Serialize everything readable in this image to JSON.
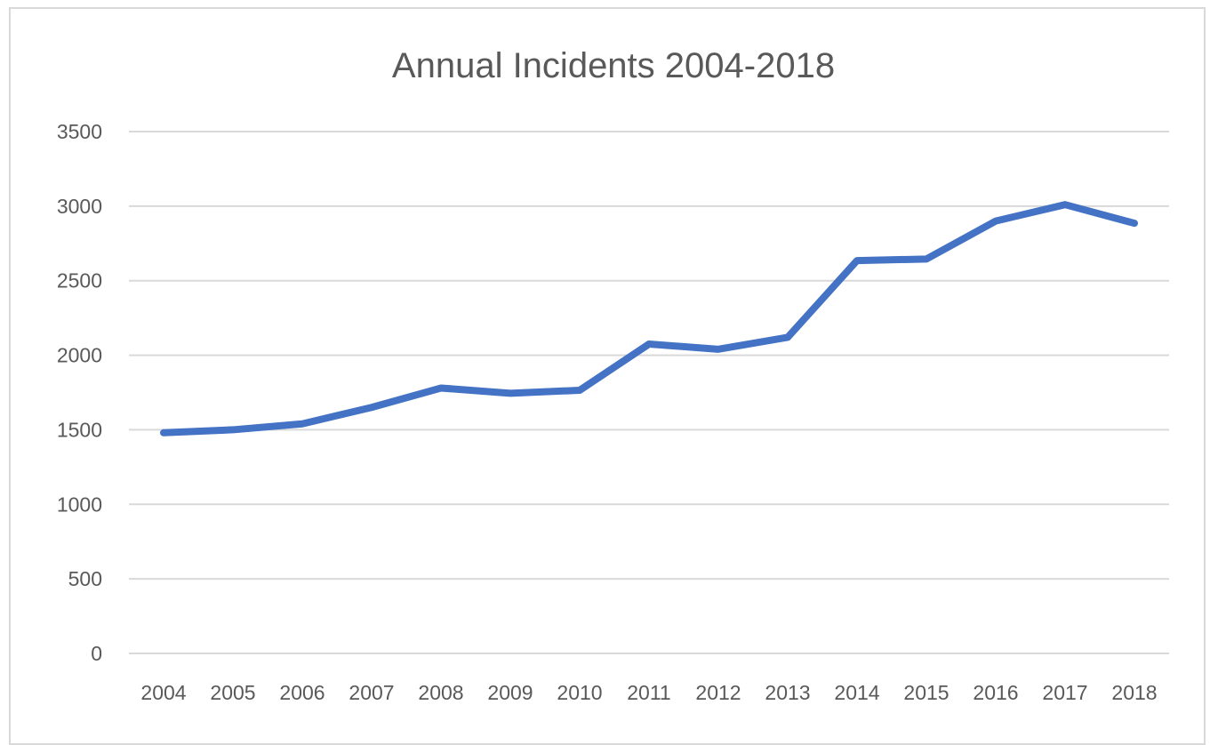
{
  "chart_data": {
    "type": "line",
    "title": "Annual Incidents 2004-2018",
    "xlabel": "",
    "ylabel": "",
    "categories": [
      "2004",
      "2005",
      "2006",
      "2007",
      "2008",
      "2009",
      "2010",
      "2011",
      "2012",
      "2013",
      "2014",
      "2015",
      "2016",
      "2017",
      "2018"
    ],
    "series": [
      {
        "values": [
          1480,
          1500,
          1540,
          1650,
          1780,
          1745,
          1765,
          2075,
          2040,
          2120,
          2635,
          2645,
          2900,
          3010,
          2885
        ],
        "color": "#4472C4"
      }
    ],
    "ylim": [
      0,
      3500
    ],
    "yticks": [
      0,
      500,
      1000,
      1500,
      2000,
      2500,
      3000,
      3500
    ],
    "grid": true,
    "legend": "none"
  },
  "colors": {
    "gridline": "#d9d9d9",
    "text": "#595959",
    "frame": "#d9d9d9"
  }
}
